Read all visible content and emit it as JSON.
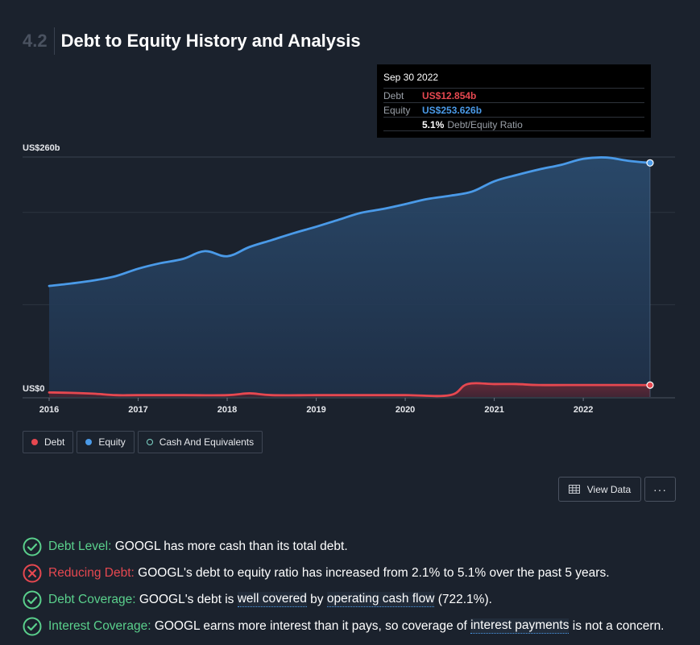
{
  "header": {
    "section_number": "4.2",
    "title": "Debt to Equity History and Analysis"
  },
  "chart_data": {
    "type": "area",
    "y_top_label": "US$260b",
    "y_bottom_label": "US$0",
    "ylim": [
      0,
      260
    ],
    "xlim": [
      2016,
      2022.75
    ],
    "x_ticks": [
      "2016",
      "2017",
      "2018",
      "2019",
      "2020",
      "2021",
      "2022"
    ],
    "series": [
      {
        "name": "Equity",
        "color": "#4a9ae8",
        "x": [
          2016.0,
          2016.25,
          2016.5,
          2016.75,
          2017.0,
          2017.25,
          2017.5,
          2017.75,
          2018.0,
          2018.25,
          2018.5,
          2018.75,
          2019.0,
          2019.25,
          2019.5,
          2019.75,
          2020.0,
          2020.25,
          2020.5,
          2020.75,
          2021.0,
          2021.25,
          2021.5,
          2021.75,
          2022.0,
          2022.25,
          2022.5,
          2022.75
        ],
        "values": [
          120.3,
          123.0,
          126.3,
          131.0,
          139.0,
          145.0,
          149.5,
          158.0,
          152.5,
          162.5,
          170.0,
          177.6,
          184.5,
          192.0,
          199.5,
          203.7,
          209.0,
          214.5,
          218.0,
          222.5,
          233.7,
          240.5,
          246.5,
          251.5,
          258.0,
          259.5,
          256.0,
          253.626
        ]
      },
      {
        "name": "Debt",
        "color": "#e64850",
        "x": [
          2016.0,
          2016.25,
          2016.5,
          2016.75,
          2017.0,
          2017.5,
          2018.0,
          2018.25,
          2018.5,
          2019.0,
          2019.5,
          2020.0,
          2020.5,
          2020.7,
          2021.0,
          2021.25,
          2021.5,
          2022.0,
          2022.5,
          2022.75
        ],
        "values": [
          4.9,
          4.5,
          3.6,
          2.0,
          2.0,
          2.0,
          2.0,
          4.0,
          2.0,
          2.0,
          2.0,
          2.0,
          2.0,
          14.0,
          14.0,
          14.0,
          13.0,
          13.0,
          13.0,
          12.854
        ]
      }
    ],
    "tooltip": {
      "date": "Sep 30 2022",
      "debt_label": "Debt",
      "debt_value": "US$12.854b",
      "equity_label": "Equity",
      "equity_value": "US$253.626b",
      "ratio_value": "5.1%",
      "ratio_label": "Debt/Equity Ratio"
    },
    "legend": [
      {
        "name": "Debt",
        "color": "#e64850"
      },
      {
        "name": "Equity",
        "color": "#4a9ae8"
      },
      {
        "name": "Cash And Equivalents",
        "color": "#7fd6c8"
      }
    ]
  },
  "actions": {
    "view_data_label": "View Data",
    "more_label": "···"
  },
  "checks": [
    {
      "status": "pass",
      "label": "Debt Level:",
      "text": " GOOGL has more cash than its total debt."
    },
    {
      "status": "fail",
      "label": "Reducing Debt:",
      "text": " GOOGL's debt to equity ratio has increased from 2.1% to 5.1% over the past 5 years."
    },
    {
      "status": "pass",
      "label": "Debt Coverage:",
      "text_a": " GOOGL's debt is ",
      "link_a": "well covered",
      "text_b": " by ",
      "link_b": "operating cash flow",
      "text_c": " (722.1%)."
    },
    {
      "status": "pass",
      "label": "Interest Coverage:",
      "text_a": " GOOGL earns more interest than it pays, so coverage of ",
      "link_a": "interest payments",
      "text_b": " is not a concern."
    }
  ]
}
